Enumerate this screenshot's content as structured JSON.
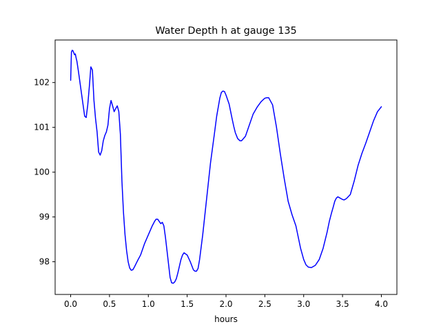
{
  "chart_data": {
    "type": "line",
    "title": "Water Depth h at gauge 135",
    "xlabel": "hours",
    "ylabel": "",
    "xlim": [
      -0.2,
      4.2
    ],
    "ylim": [
      97.27,
      102.95
    ],
    "grid": false,
    "legend": "none",
    "x_ticks": [
      0.0,
      0.5,
      1.0,
      1.5,
      2.0,
      2.5,
      3.0,
      3.5,
      4.0
    ],
    "x_tick_labels": [
      "0.0",
      "0.5",
      "1.0",
      "1.5",
      "2.0",
      "2.5",
      "3.0",
      "3.5",
      "4.0"
    ],
    "y_ticks": [
      98,
      99,
      100,
      101,
      102
    ],
    "y_tick_labels": [
      "98",
      "99",
      "100",
      "101",
      "102"
    ],
    "series": [
      {
        "color": "#0000ff",
        "x": [
          0.0,
          0.01,
          0.02,
          0.03,
          0.05,
          0.06,
          0.07,
          0.08,
          0.1,
          0.12,
          0.14,
          0.16,
          0.18,
          0.2,
          0.22,
          0.24,
          0.26,
          0.28,
          0.3,
          0.32,
          0.34,
          0.36,
          0.38,
          0.4,
          0.42,
          0.44,
          0.46,
          0.48,
          0.5,
          0.52,
          0.54,
          0.56,
          0.58,
          0.6,
          0.62,
          0.64,
          0.66,
          0.68,
          0.7,
          0.72,
          0.74,
          0.76,
          0.78,
          0.8,
          0.82,
          0.84,
          0.86,
          0.9,
          0.95,
          1.0,
          1.05,
          1.08,
          1.1,
          1.12,
          1.14,
          1.16,
          1.18,
          1.2,
          1.22,
          1.24,
          1.26,
          1.28,
          1.3,
          1.32,
          1.34,
          1.36,
          1.38,
          1.4,
          1.42,
          1.44,
          1.46,
          1.5,
          1.54,
          1.58,
          1.6,
          1.62,
          1.64,
          1.66,
          1.7,
          1.75,
          1.8,
          1.85,
          1.88,
          1.9,
          1.92,
          1.94,
          1.96,
          1.98,
          2.0,
          2.02,
          2.04,
          2.06,
          2.08,
          2.1,
          2.12,
          2.15,
          2.18,
          2.2,
          2.25,
          2.3,
          2.35,
          2.4,
          2.45,
          2.48,
          2.5,
          2.52,
          2.55,
          2.6,
          2.65,
          2.7,
          2.75,
          2.8,
          2.85,
          2.9,
          2.93,
          2.96,
          3.0,
          3.03,
          3.06,
          3.1,
          3.15,
          3.2,
          3.25,
          3.3,
          3.33,
          3.36,
          3.38,
          3.4,
          3.42,
          3.44,
          3.46,
          3.48,
          3.5,
          3.52,
          3.55,
          3.6,
          3.65,
          3.7,
          3.75,
          3.8,
          3.85,
          3.9,
          3.95,
          4.0
        ],
        "values": [
          102.05,
          102.68,
          102.72,
          102.71,
          102.62,
          102.64,
          102.55,
          102.48,
          102.25,
          102.0,
          101.75,
          101.5,
          101.25,
          101.22,
          101.5,
          101.9,
          102.35,
          102.28,
          101.6,
          101.2,
          100.9,
          100.45,
          100.38,
          100.48,
          100.7,
          100.82,
          100.9,
          101.05,
          101.42,
          101.6,
          101.48,
          101.35,
          101.42,
          101.48,
          101.35,
          100.85,
          99.8,
          99.1,
          98.6,
          98.25,
          98.0,
          97.86,
          97.81,
          97.82,
          97.88,
          97.95,
          98.02,
          98.15,
          98.4,
          98.6,
          98.8,
          98.9,
          98.95,
          98.95,
          98.9,
          98.85,
          98.88,
          98.8,
          98.55,
          98.25,
          97.95,
          97.65,
          97.53,
          97.52,
          97.55,
          97.62,
          97.75,
          97.9,
          98.05,
          98.15,
          98.2,
          98.15,
          98.0,
          97.82,
          97.79,
          97.79,
          97.85,
          98.05,
          98.6,
          99.4,
          100.2,
          100.85,
          101.25,
          101.45,
          101.65,
          101.78,
          101.81,
          101.8,
          101.72,
          101.62,
          101.52,
          101.35,
          101.18,
          101.02,
          100.88,
          100.75,
          100.7,
          100.7,
          100.8,
          101.05,
          101.3,
          101.45,
          101.57,
          101.62,
          101.65,
          101.66,
          101.66,
          101.5,
          101.0,
          100.4,
          99.85,
          99.35,
          99.05,
          98.8,
          98.55,
          98.3,
          98.05,
          97.93,
          97.88,
          97.87,
          97.92,
          98.05,
          98.3,
          98.65,
          98.9,
          99.1,
          99.22,
          99.35,
          99.42,
          99.45,
          99.43,
          99.41,
          99.39,
          99.38,
          99.41,
          99.5,
          99.8,
          100.15,
          100.42,
          100.65,
          100.9,
          101.15,
          101.35,
          101.46
        ]
      }
    ]
  }
}
